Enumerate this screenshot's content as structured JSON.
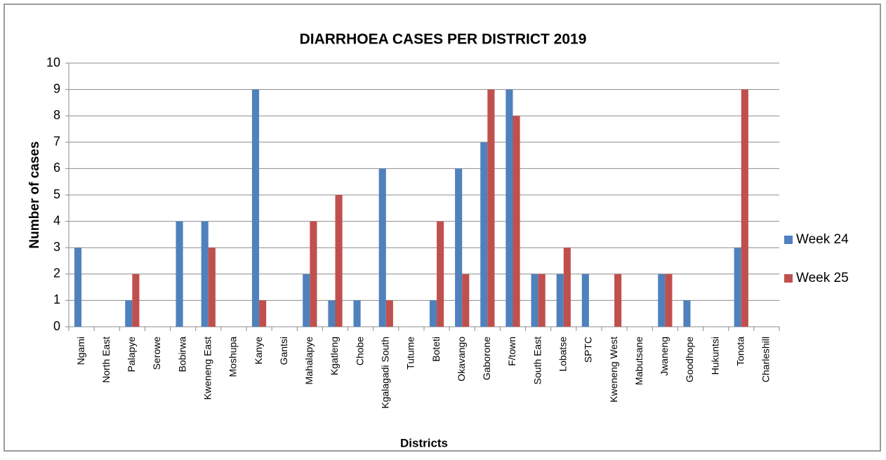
{
  "chart_data": {
    "type": "bar",
    "title": "DIARRHOEA CASES PER DISTRICT 2019",
    "x_label": "Districts",
    "y_label": "Number of cases",
    "categories": [
      "Ngami",
      "North East",
      "Palapye",
      "Serowe",
      "Bobirwa",
      "Kweneng East",
      "Moshupa",
      "Kanye",
      "Gantsi",
      "Mahalapye",
      "Kgatleng",
      "Chobe",
      "Kgalagadi South",
      "Tutume",
      "Boteti",
      "Okavango",
      "Gaborone",
      "F/town",
      "South East",
      "Lobatse",
      "SPTC",
      "Kweneng West",
      "Mabutsane",
      "Jwaneng",
      "Goodhope",
      "Hukuntsi",
      "Tonota",
      "Charleshill"
    ],
    "series": [
      {
        "name": "Week 24",
        "color": "#4f81bd",
        "values": [
          3,
          null,
          1,
          null,
          4,
          4,
          null,
          9,
          null,
          2,
          1,
          1,
          6,
          null,
          1,
          6,
          7,
          9,
          2,
          2,
          2,
          null,
          null,
          2,
          1,
          null,
          3,
          null
        ]
      },
      {
        "name": "Week 25",
        "color": "#c0504d",
        "values": [
          null,
          null,
          2,
          null,
          null,
          3,
          null,
          1,
          null,
          4,
          5,
          null,
          1,
          null,
          4,
          2,
          9,
          8,
          2,
          3,
          null,
          2,
          null,
          2,
          null,
          null,
          9,
          null
        ]
      }
    ],
    "ylim": [
      0,
      10
    ],
    "yticks": [
      0,
      1,
      2,
      3,
      4,
      5,
      6,
      7,
      8,
      9,
      10
    ],
    "grid": true,
    "legend": "right"
  }
}
